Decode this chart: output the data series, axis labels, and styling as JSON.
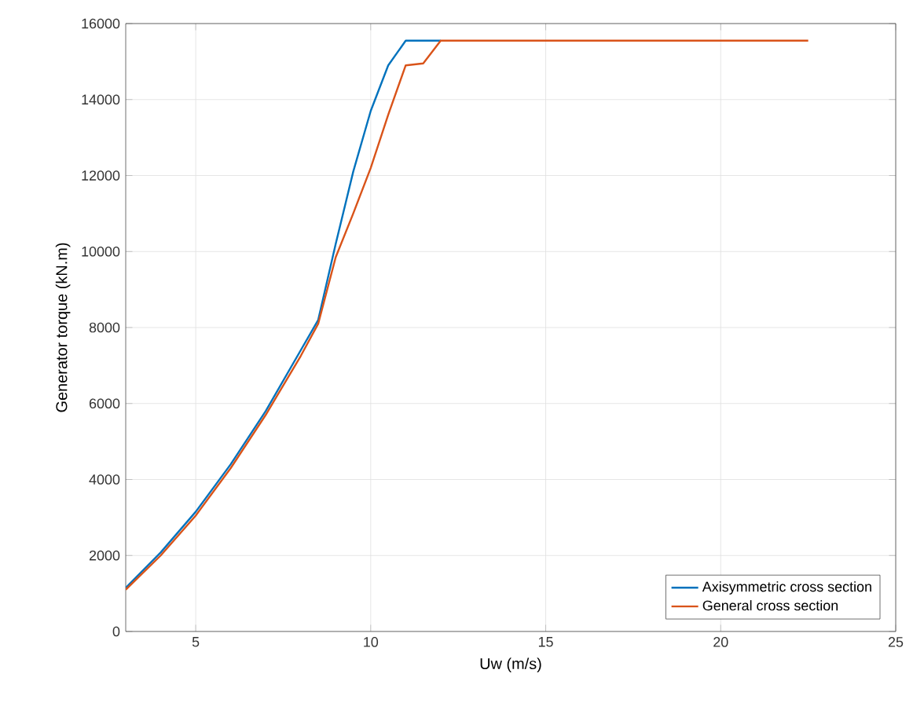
{
  "chart_data": {
    "type": "line",
    "xlabel": "Uw (m/s)",
    "ylabel": "Generator torque (kN.m)",
    "xlim": [
      3,
      25
    ],
    "ylim": [
      0,
      16000
    ],
    "xticks": [
      5,
      10,
      15,
      20,
      25
    ],
    "yticks": [
      0,
      2000,
      4000,
      6000,
      8000,
      10000,
      12000,
      14000,
      16000
    ],
    "grid": true,
    "legend": "bottom right",
    "line_style": "solid",
    "series": [
      {
        "name": "Axisymmetric cross section",
        "color": "#0072bd",
        "x": [
          3,
          4,
          5,
          6,
          7,
          8,
          8.5,
          9,
          9.5,
          10,
          10.5,
          11,
          12
        ],
        "values": [
          1150,
          2080,
          3150,
          4400,
          5800,
          7400,
          8200,
          10200,
          12100,
          13700,
          14900,
          15550,
          15550
        ]
      },
      {
        "name": "General cross section",
        "color": "#d95319",
        "x": [
          3,
          4,
          5,
          6,
          7,
          8,
          8.5,
          9,
          9.5,
          10,
          10.5,
          11,
          11.5,
          12,
          22.5
        ],
        "values": [
          1100,
          2000,
          3050,
          4300,
          5700,
          7250,
          8100,
          9850,
          11000,
          12200,
          13600,
          14900,
          14950,
          15550,
          15550
        ]
      }
    ]
  }
}
